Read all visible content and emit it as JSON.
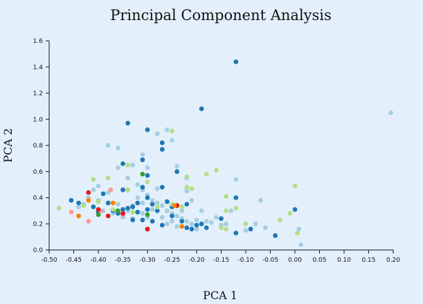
{
  "chart_data": {
    "type": "scatter",
    "title": "Principal Component Analysis",
    "xlabel": "PCA 1",
    "ylabel": "PCA 2",
    "xlim": [
      -0.5,
      0.2
    ],
    "ylim": [
      0.0,
      1.6
    ],
    "x_ticks": [
      "-0.50",
      "-0.45",
      "-0.40",
      "-0.35",
      "-0.30",
      "-0.25",
      "-0.20",
      "-0.15",
      "-0.10",
      "-0.05",
      "0.00",
      "0.05",
      "0.10",
      "0.15",
      "0.20"
    ],
    "y_ticks": [
      "0.0",
      "0.2",
      "0.4",
      "0.6",
      "0.8",
      "1.0",
      "1.2",
      "1.4",
      "1.6"
    ],
    "grid": false,
    "legend": false,
    "series": [
      {
        "color": "#a6cee3",
        "points": [
          [
            -0.38,
            0.8
          ],
          [
            -0.36,
            0.78
          ],
          [
            -0.33,
            0.65
          ],
          [
            -0.31,
            0.73
          ],
          [
            -0.3,
            0.63
          ],
          [
            -0.28,
            0.89
          ],
          [
            -0.26,
            0.92
          ],
          [
            -0.25,
            0.84
          ],
          [
            -0.24,
            0.64
          ],
          [
            -0.22,
            0.55
          ],
          [
            -0.12,
            0.54
          ],
          [
            -0.07,
            0.38
          ],
          [
            0.195,
            1.05
          ],
          [
            -0.36,
            0.63
          ],
          [
            -0.34,
            0.55
          ],
          [
            -0.32,
            0.5
          ],
          [
            -0.31,
            0.46
          ],
          [
            -0.3,
            0.42
          ],
          [
            -0.29,
            0.38
          ],
          [
            -0.28,
            0.36
          ],
          [
            -0.27,
            0.34
          ],
          [
            -0.26,
            0.3
          ],
          [
            -0.25,
            0.28
          ],
          [
            -0.24,
            0.26
          ],
          [
            -0.23,
            0.24
          ],
          [
            -0.22,
            0.22
          ],
          [
            -0.21,
            0.2
          ],
          [
            -0.2,
            0.23
          ],
          [
            -0.19,
            0.3
          ],
          [
            -0.18,
            0.22
          ],
          [
            -0.17,
            0.21
          ],
          [
            -0.15,
            0.19
          ],
          [
            -0.14,
            0.2
          ],
          [
            -0.1,
            0.15
          ],
          [
            -0.08,
            0.2
          ],
          [
            -0.06,
            0.17
          ],
          [
            0.008,
            0.16
          ],
          [
            0.012,
            0.04
          ],
          [
            -0.4,
            0.49
          ],
          [
            -0.41,
            0.46
          ],
          [
            -0.42,
            0.4
          ],
          [
            -0.43,
            0.35
          ],
          [
            -0.44,
            0.33
          ],
          [
            -0.39,
            0.3
          ],
          [
            -0.37,
            0.28
          ],
          [
            -0.35,
            0.27
          ],
          [
            -0.33,
            0.24
          ],
          [
            -0.31,
            0.36
          ],
          [
            -0.29,
            0.31
          ],
          [
            -0.27,
            0.25
          ],
          [
            -0.25,
            0.22
          ],
          [
            -0.23,
            0.3
          ],
          [
            -0.21,
            0.38
          ],
          [
            -0.22,
            0.45
          ],
          [
            -0.28,
            0.47
          ],
          [
            -0.32,
            0.4
          ],
          [
            -0.34,
            0.3
          ],
          [
            -0.36,
            0.35
          ],
          [
            -0.38,
            0.44
          ],
          [
            -0.4,
            0.38
          ],
          [
            -0.3,
            0.25
          ],
          [
            -0.26,
            0.2
          ],
          [
            -0.24,
            0.18
          ],
          [
            -0.2,
            0.16
          ],
          [
            -0.16,
            0.25
          ],
          [
            -0.13,
            0.3
          ],
          [
            -0.35,
            0.25
          ],
          [
            -0.33,
            0.34
          ],
          [
            -0.31,
            0.28
          ],
          [
            -0.29,
            0.22
          ]
        ]
      },
      {
        "color": "#1f78b4",
        "points": [
          [
            -0.12,
            1.44
          ],
          [
            -0.19,
            1.08
          ],
          [
            -0.34,
            0.97
          ],
          [
            -0.3,
            0.92
          ],
          [
            -0.27,
            0.82
          ],
          [
            -0.27,
            0.77
          ],
          [
            -0.31,
            0.69
          ],
          [
            -0.35,
            0.66
          ],
          [
            -0.24,
            0.6
          ],
          [
            -0.3,
            0.57
          ],
          [
            -0.35,
            0.46
          ],
          [
            -0.31,
            0.48
          ],
          [
            -0.27,
            0.48
          ],
          [
            -0.3,
            0.4
          ],
          [
            -0.26,
            0.37
          ],
          [
            -0.29,
            0.35
          ],
          [
            -0.25,
            0.33
          ],
          [
            -0.33,
            0.33
          ],
          [
            -0.35,
            0.31
          ],
          [
            -0.32,
            0.29
          ],
          [
            -0.36,
            0.28
          ],
          [
            -0.33,
            0.23
          ],
          [
            -0.31,
            0.23
          ],
          [
            -0.27,
            0.19
          ],
          [
            -0.23,
            0.22
          ],
          [
            -0.22,
            0.17
          ],
          [
            -0.21,
            0.16
          ],
          [
            -0.19,
            0.2
          ],
          [
            -0.18,
            0.17
          ],
          [
            -0.15,
            0.24
          ],
          [
            -0.12,
            0.4
          ],
          [
            -0.12,
            0.13
          ],
          [
            -0.09,
            0.16
          ],
          [
            -0.04,
            0.11
          ],
          [
            0.0,
            0.31
          ],
          [
            -0.455,
            0.38
          ],
          [
            -0.44,
            0.36
          ],
          [
            -0.41,
            0.33
          ],
          [
            -0.4,
            0.29
          ],
          [
            -0.39,
            0.43
          ],
          [
            -0.38,
            0.36
          ],
          [
            -0.37,
            0.3
          ],
          [
            -0.34,
            0.32
          ],
          [
            -0.32,
            0.36
          ],
          [
            -0.3,
            0.31
          ],
          [
            -0.28,
            0.3
          ],
          [
            -0.24,
            0.34
          ],
          [
            -0.22,
            0.35
          ],
          [
            -0.2,
            0.19
          ],
          [
            -0.25,
            0.26
          ],
          [
            -0.29,
            0.22
          ],
          [
            -0.34,
            0.46
          ]
        ]
      },
      {
        "color": "#b2df8a",
        "points": [
          [
            -0.48,
            0.32
          ],
          [
            -0.41,
            0.54
          ],
          [
            -0.38,
            0.55
          ],
          [
            -0.34,
            0.65
          ],
          [
            -0.34,
            0.46
          ],
          [
            -0.3,
            0.52
          ],
          [
            -0.25,
            0.91
          ],
          [
            -0.22,
            0.56
          ],
          [
            -0.22,
            0.48
          ],
          [
            -0.21,
            0.47
          ],
          [
            -0.18,
            0.58
          ],
          [
            -0.16,
            0.61
          ],
          [
            -0.14,
            0.41
          ],
          [
            -0.14,
            0.3
          ],
          [
            -0.12,
            0.32
          ],
          [
            -0.1,
            0.2
          ],
          [
            -0.03,
            0.23
          ],
          [
            -0.01,
            0.28
          ],
          [
            0.0,
            0.49
          ],
          [
            0.005,
            0.13
          ],
          [
            -0.15,
            0.17
          ],
          [
            -0.14,
            0.16
          ],
          [
            -0.43,
            0.34
          ],
          [
            -0.4,
            0.37
          ],
          [
            -0.37,
            0.31
          ],
          [
            -0.33,
            0.29
          ],
          [
            -0.28,
            0.33
          ],
          [
            -0.25,
            0.35
          ],
          [
            -0.23,
            0.33
          ]
        ]
      },
      {
        "color": "#33a02c",
        "points": [
          [
            -0.3,
            0.27
          ],
          [
            -0.3,
            0.16
          ],
          [
            -0.31,
            0.58
          ],
          [
            -0.4,
            0.27
          ],
          [
            -0.36,
            0.3
          ]
        ]
      },
      {
        "color": "#fb9a99",
        "points": [
          [
            -0.455,
            0.29
          ],
          [
            -0.42,
            0.22
          ],
          [
            -0.395,
            0.3
          ],
          [
            -0.375,
            0.46
          ],
          [
            -0.35,
            0.27
          ]
        ]
      },
      {
        "color": "#e31a1c",
        "points": [
          [
            -0.42,
            0.44
          ],
          [
            -0.4,
            0.31
          ],
          [
            -0.38,
            0.26
          ],
          [
            -0.35,
            0.28
          ],
          [
            -0.3,
            0.16
          ],
          [
            -0.24,
            0.34
          ]
        ]
      },
      {
        "color": "#ff7f00",
        "points": [
          [
            -0.44,
            0.26
          ],
          [
            -0.42,
            0.38
          ],
          [
            -0.37,
            0.36
          ],
          [
            -0.245,
            0.34
          ],
          [
            -0.23,
            0.18
          ]
        ]
      }
    ]
  }
}
